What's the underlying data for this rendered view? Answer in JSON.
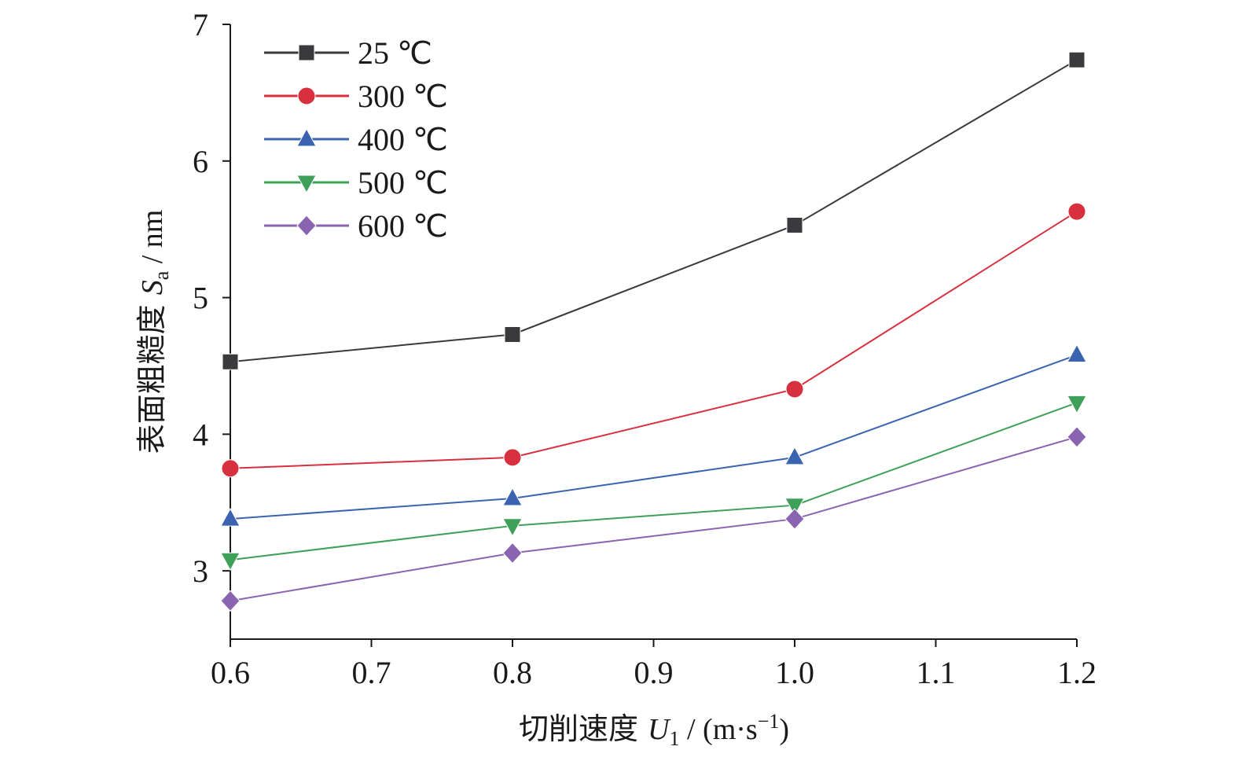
{
  "chart_data": {
    "type": "line",
    "xlabel": "切削速度 U1 / (m·s−1)",
    "xlabel_parts": {
      "main": "切削速度 ",
      "var": "U",
      "sub": "1",
      "unit_open": " / (m·s",
      "sup": "−1",
      "unit_close": ")"
    },
    "ylabel": "表面粗糙度 Sa / nm",
    "ylabel_parts": {
      "main": "表面粗糙度 ",
      "var": "S",
      "sub": "a",
      "unit": " / nm"
    },
    "xlim": [
      0.6,
      1.2
    ],
    "ylim": [
      2.5,
      7
    ],
    "x_ticks": [
      "0.6",
      "0.7",
      "0.8",
      "0.9",
      "1.0",
      "1.1",
      "1.2"
    ],
    "x_tick_values": [
      0.6,
      0.7,
      0.8,
      0.9,
      1.0,
      1.1,
      1.2
    ],
    "y_ticks": [
      "3",
      "4",
      "5",
      "6",
      "7"
    ],
    "y_tick_values": [
      3,
      4,
      5,
      6,
      7
    ],
    "grid": false,
    "legend_position": "top-left",
    "x": [
      0.6,
      0.8,
      1.0,
      1.2
    ],
    "series": [
      {
        "name": "25 ℃",
        "color": "#3a3a3c",
        "marker": "square",
        "values": [
          4.53,
          4.73,
          5.53,
          6.74
        ]
      },
      {
        "name": "300 ℃",
        "color": "#d8303e",
        "marker": "circle",
        "values": [
          3.75,
          3.83,
          4.33,
          5.63
        ]
      },
      {
        "name": "400 ℃",
        "color": "#3b64b0",
        "marker": "triangle-up",
        "values": [
          3.38,
          3.53,
          3.83,
          4.58
        ]
      },
      {
        "name": "500 ℃",
        "color": "#3fa05a",
        "marker": "triangle-down",
        "values": [
          3.08,
          3.33,
          3.48,
          4.23
        ]
      },
      {
        "name": "600 ℃",
        "color": "#8a64b0",
        "marker": "diamond",
        "values": [
          2.78,
          3.13,
          3.38,
          3.98
        ]
      }
    ]
  }
}
